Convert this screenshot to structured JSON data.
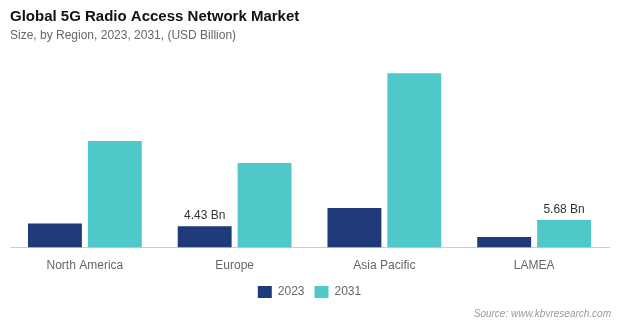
{
  "chart_data": {
    "type": "bar",
    "title": "Global 5G Radio Access Network Market",
    "subtitle": "Size, by Region, 2023, 2031, (USD Billion)",
    "categories": [
      "North America",
      "Europe",
      "Asia Pacific",
      "LAMEA"
    ],
    "series": [
      {
        "name": "2023",
        "color": "#1f3a7a",
        "values": [
          5.0,
          4.43,
          8.2,
          2.2
        ]
      },
      {
        "name": "2031",
        "color": "#4ec8c8",
        "values": [
          22.0,
          17.5,
          36.0,
          5.68
        ]
      }
    ],
    "annotations": [
      {
        "text": "4.43 Bn",
        "category": "Europe",
        "series": "2023"
      },
      {
        "text": "5.68 Bn",
        "category": "LAMEA",
        "series": "2031"
      }
    ],
    "source": "Source: www.kbvresearch.com",
    "ylim": [
      0,
      40.32
    ],
    "grid": false,
    "legend": "bottom",
    "tick_labels": "x"
  }
}
